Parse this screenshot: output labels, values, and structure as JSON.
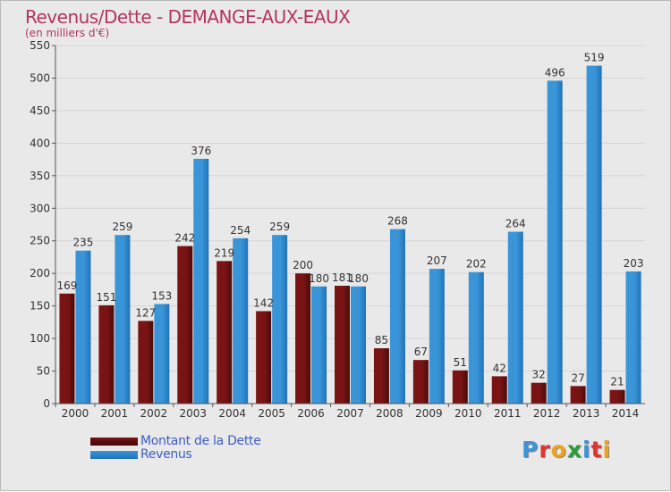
{
  "chart_data": {
    "type": "bar",
    "title": "Revenus/Dette - DEMANGE-AUX-EAUX",
    "subtitle": "(en milliers d'€)",
    "categories": [
      "2000",
      "2001",
      "2002",
      "2003",
      "2004",
      "2005",
      "2006",
      "2007",
      "2008",
      "2009",
      "2010",
      "2011",
      "2012",
      "2013",
      "2014"
    ],
    "series": [
      {
        "name": "Montant de la Dette",
        "color": "#7a1414",
        "values": [
          169,
          151,
          127,
          242,
          219,
          142,
          200,
          181,
          85,
          67,
          51,
          42,
          32,
          27,
          21
        ]
      },
      {
        "name": "Revenus",
        "color": "#3a95d8",
        "values": [
          235,
          259,
          153,
          376,
          254,
          259,
          180,
          180,
          268,
          207,
          202,
          264,
          496,
          519,
          203
        ]
      }
    ],
    "yticks": [
      0,
      50,
      100,
      150,
      200,
      250,
      300,
      350,
      400,
      450,
      500,
      550
    ],
    "ylim": [
      0,
      550
    ],
    "grid": true,
    "legend_position": "bottom-left"
  },
  "logo": {
    "text": "Proxiti",
    "letters": [
      "P",
      "r",
      "o",
      "x",
      "i",
      "t",
      "i"
    ],
    "colors": [
      "#3a95d8",
      "#e0342f",
      "#f0a21b",
      "#2e9b3a",
      "#3a95d8",
      "#e0342f",
      "#f0a21b"
    ]
  }
}
